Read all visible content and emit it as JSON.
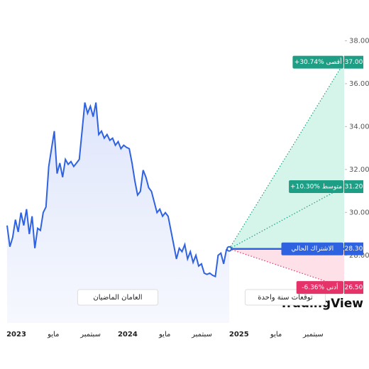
{
  "chart_data": {
    "type": "line",
    "xticks": [
      "2023",
      "مايو",
      "سبتمبر",
      "2024",
      "مايو",
      "سبتمبر",
      "2025",
      "مايو",
      "سبتمبر"
    ],
    "ylim": [
      24.85,
      39.9
    ],
    "yticks": [
      {
        "value": 28,
        "label": "28.00"
      },
      {
        "value": 30,
        "label": "30.00"
      },
      {
        "value": 32,
        "label": "32.00"
      },
      {
        "value": 34,
        "label": "34.00"
      },
      {
        "value": 36,
        "label": "36.00"
      },
      {
        "value": 38,
        "label": "38.00"
      }
    ],
    "color": "#2f62e0",
    "values": [
      29.39,
      28.4,
      28.83,
      29.66,
      29.09,
      29.99,
      29.39,
      30.15,
      28.99,
      29.82,
      28.33,
      29.26,
      29.16,
      29.99,
      30.25,
      32.14,
      32.97,
      33.79,
      31.81,
      32.3,
      31.64,
      32.47,
      32.24,
      32.37,
      32.14,
      32.3,
      32.47,
      33.79,
      35.12,
      34.62,
      34.95,
      34.46,
      35.12,
      33.63,
      33.79,
      33.46,
      33.63,
      33.36,
      33.46,
      33.13,
      33.3,
      32.97,
      33.13,
      33.03,
      32.97,
      32.3,
      31.48,
      30.81,
      30.98,
      31.97,
      31.64,
      31.15,
      30.98,
      30.48,
      29.99,
      30.15,
      29.82,
      29.99,
      29.82,
      29.16,
      28.5,
      27.83,
      28.33,
      28.17,
      28.5,
      27.83,
      28.17,
      27.67,
      28.0,
      27.5,
      27.6,
      27.17,
      27.11,
      27.17,
      27.07,
      27.01,
      28.0,
      28.1,
      27.6,
      28.26,
      28.3
    ],
    "history_label": "العامان الماضيان",
    "forecast_label": "توقعات سنة واحدة",
    "current": {
      "value": 28.3,
      "value_label": "28.30",
      "name": "الاشتراك الحالي",
      "color": "#2f62e0"
    },
    "targets": [
      {
        "value": 37,
        "value_label": "37.00",
        "name": "+30.74% أقصى",
        "color": "#1f9e86"
      },
      {
        "value": 31.2,
        "value_label": "31.20",
        "name": "+10.30% متوسط",
        "color": "#1f9e86"
      },
      {
        "value": 26.5,
        "value_label": "26.50",
        "name": "-6.36% أدنى",
        "color": "#e5336a"
      }
    ],
    "logo": "TradingView"
  }
}
